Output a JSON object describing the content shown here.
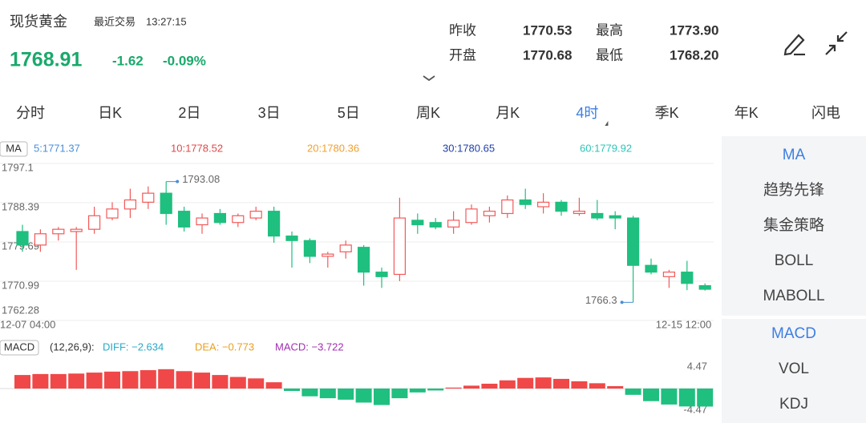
{
  "header": {
    "title": "现货黄金",
    "trade_label": "最近交易",
    "trade_time": "13:27:15",
    "price": "1768.91",
    "change": "-1.62",
    "change_pct": "-0.09%"
  },
  "quote": {
    "rows": [
      [
        {
          "label": "昨收",
          "value": "1770.53"
        },
        {
          "label": "最高",
          "value": "1773.90"
        }
      ],
      [
        {
          "label": "开盘",
          "value": "1770.68"
        },
        {
          "label": "最低",
          "value": "1768.20"
        }
      ]
    ]
  },
  "tabs": [
    {
      "label": "分时"
    },
    {
      "label": "日K"
    },
    {
      "label": "2日"
    },
    {
      "label": "3日"
    },
    {
      "label": "5日"
    },
    {
      "label": "周K"
    },
    {
      "label": "月K"
    },
    {
      "label": "4时",
      "selected": true
    },
    {
      "label": "季K"
    },
    {
      "label": "年K"
    },
    {
      "label": "闪电"
    }
  ],
  "side_panel": {
    "main": [
      {
        "label": "MA",
        "selected": true
      },
      {
        "label": "趋势先锋"
      },
      {
        "label": "集金策略"
      },
      {
        "label": "BOLL"
      },
      {
        "label": "MABOLL"
      }
    ],
    "sub": [
      {
        "label": "MACD",
        "selected": true
      },
      {
        "label": "VOL"
      },
      {
        "label": "KDJ"
      }
    ]
  },
  "chart_data": [
    {
      "type": "candlestick",
      "legend_title": "MA",
      "legend": [
        {
          "label": "5:1771.37",
          "color": "#4a8fd8"
        },
        {
          "label": "10:1778.52",
          "color": "#e04848"
        },
        {
          "label": "20:1780.36",
          "color": "#f0a030"
        },
        {
          "label": "30:1780.65",
          "color": "#1f3fa8"
        },
        {
          "label": "60:1779.92",
          "color": "#2cc4b8"
        }
      ],
      "categories": [
        "12-07 04:00",
        null,
        null,
        null,
        null,
        null,
        null,
        null,
        null,
        null,
        null,
        null,
        null,
        null,
        null,
        null,
        null,
        null,
        null,
        null,
        null,
        null,
        null,
        null,
        null,
        null,
        null,
        null,
        null,
        null,
        null,
        null,
        null,
        null,
        null,
        null,
        null,
        null,
        "12-15 12:00"
      ],
      "open": [
        1782.0,
        1779.0,
        1781.5,
        1782.0,
        1782.5,
        1785.0,
        1787.0,
        1788.5,
        1790.5,
        1786.5,
        1783.5,
        1786.0,
        1784.0,
        1785.0,
        1786.5,
        1781.0,
        1780.0,
        1776.5,
        1777.5,
        1778.5,
        1773.0,
        1772.5,
        1784.5,
        1784.0,
        1783.0,
        1784.0,
        1785.5,
        1786.0,
        1789.0,
        1787.5,
        1788.5,
        1786.0,
        1786.0,
        1785.5,
        1785.0,
        1774.5,
        1772.0,
        1773.0,
        1770.0
      ],
      "high": [
        1783.5,
        1782.5,
        1783.0,
        1783.0,
        1787.5,
        1788.5,
        1791.5,
        1792.0,
        1793.08,
        1787.5,
        1786.0,
        1787.0,
        1786.0,
        1787.5,
        1787.5,
        1782.0,
        1780.5,
        1777.5,
        1780.0,
        1779.0,
        1774.0,
        1789.5,
        1786.0,
        1785.0,
        1786.5,
        1788.0,
        1787.5,
        1790.0,
        1791.5,
        1790.5,
        1789.0,
        1789.5,
        1789.0,
        1786.5,
        1785.5,
        1776.0,
        1773.5,
        1775.5,
        1770.5
      ],
      "low": [
        1777.5,
        1777.5,
        1780.0,
        1773.5,
        1781.5,
        1784.5,
        1785.0,
        1787.0,
        1783.5,
        1782.0,
        1781.5,
        1783.5,
        1783.0,
        1784.5,
        1779.5,
        1774.0,
        1775.0,
        1774.0,
        1776.0,
        1770.0,
        1769.5,
        1771.0,
        1781.5,
        1782.5,
        1781.5,
        1783.5,
        1784.0,
        1785.0,
        1787.0,
        1786.0,
        1785.5,
        1785.5,
        1784.5,
        1782.5,
        1766.3,
        1772.5,
        1769.5,
        1769.0,
        1768.9
      ],
      "close": [
        1779.0,
        1781.5,
        1782.5,
        1782.5,
        1785.5,
        1787.0,
        1789.0,
        1790.5,
        1786.0,
        1783.0,
        1785.0,
        1784.0,
        1785.5,
        1786.5,
        1781.0,
        1780.0,
        1776.5,
        1777.0,
        1779.0,
        1773.0,
        1772.0,
        1785.0,
        1783.5,
        1783.0,
        1784.5,
        1787.0,
        1786.5,
        1789.0,
        1788.0,
        1788.5,
        1786.5,
        1786.5,
        1785.0,
        1785.0,
        1774.5,
        1773.0,
        1773.0,
        1770.5,
        1769.2
      ],
      "up_color": "#f25a5a",
      "down_color": "#1fbf7f",
      "max_label": "1793.08",
      "min_label": "1766.3",
      "ylim": [
        1762.28,
        1797.1
      ],
      "yticks": [
        1797.1,
        1788.39,
        1779.69,
        1770.99,
        1762.28
      ],
      "grid": true
    },
    {
      "type": "bar",
      "legend_title": "MACD",
      "legend": [
        {
          "label": "(12,26,9):",
          "color": "#333333"
        },
        {
          "label": "DIFF: −2.634",
          "color": "#2aa8c8"
        },
        {
          "label": "DEA: −0.773",
          "color": "#e8a020"
        },
        {
          "label": "MACD: −3.722",
          "color": "#a030b0"
        }
      ],
      "values": [
        2.8,
        3.0,
        3.0,
        3.1,
        3.3,
        3.5,
        3.6,
        3.8,
        4.0,
        3.6,
        3.3,
        2.8,
        2.4,
        2.1,
        1.3,
        -0.5,
        -1.6,
        -2.0,
        -2.3,
        -2.9,
        -3.4,
        -2.0,
        -0.8,
        -0.4,
        0.2,
        0.6,
        1.0,
        1.7,
        2.2,
        2.3,
        2.0,
        1.5,
        1.1,
        0.5,
        -1.3,
        -2.6,
        -3.3,
        -3.7,
        -3.722
      ],
      "up_color": "#f04848",
      "down_color": "#1fbf7f",
      "ylim": [
        -4.47,
        4.47
      ],
      "yticks": [
        4.47,
        0,
        -4.47
      ]
    }
  ]
}
